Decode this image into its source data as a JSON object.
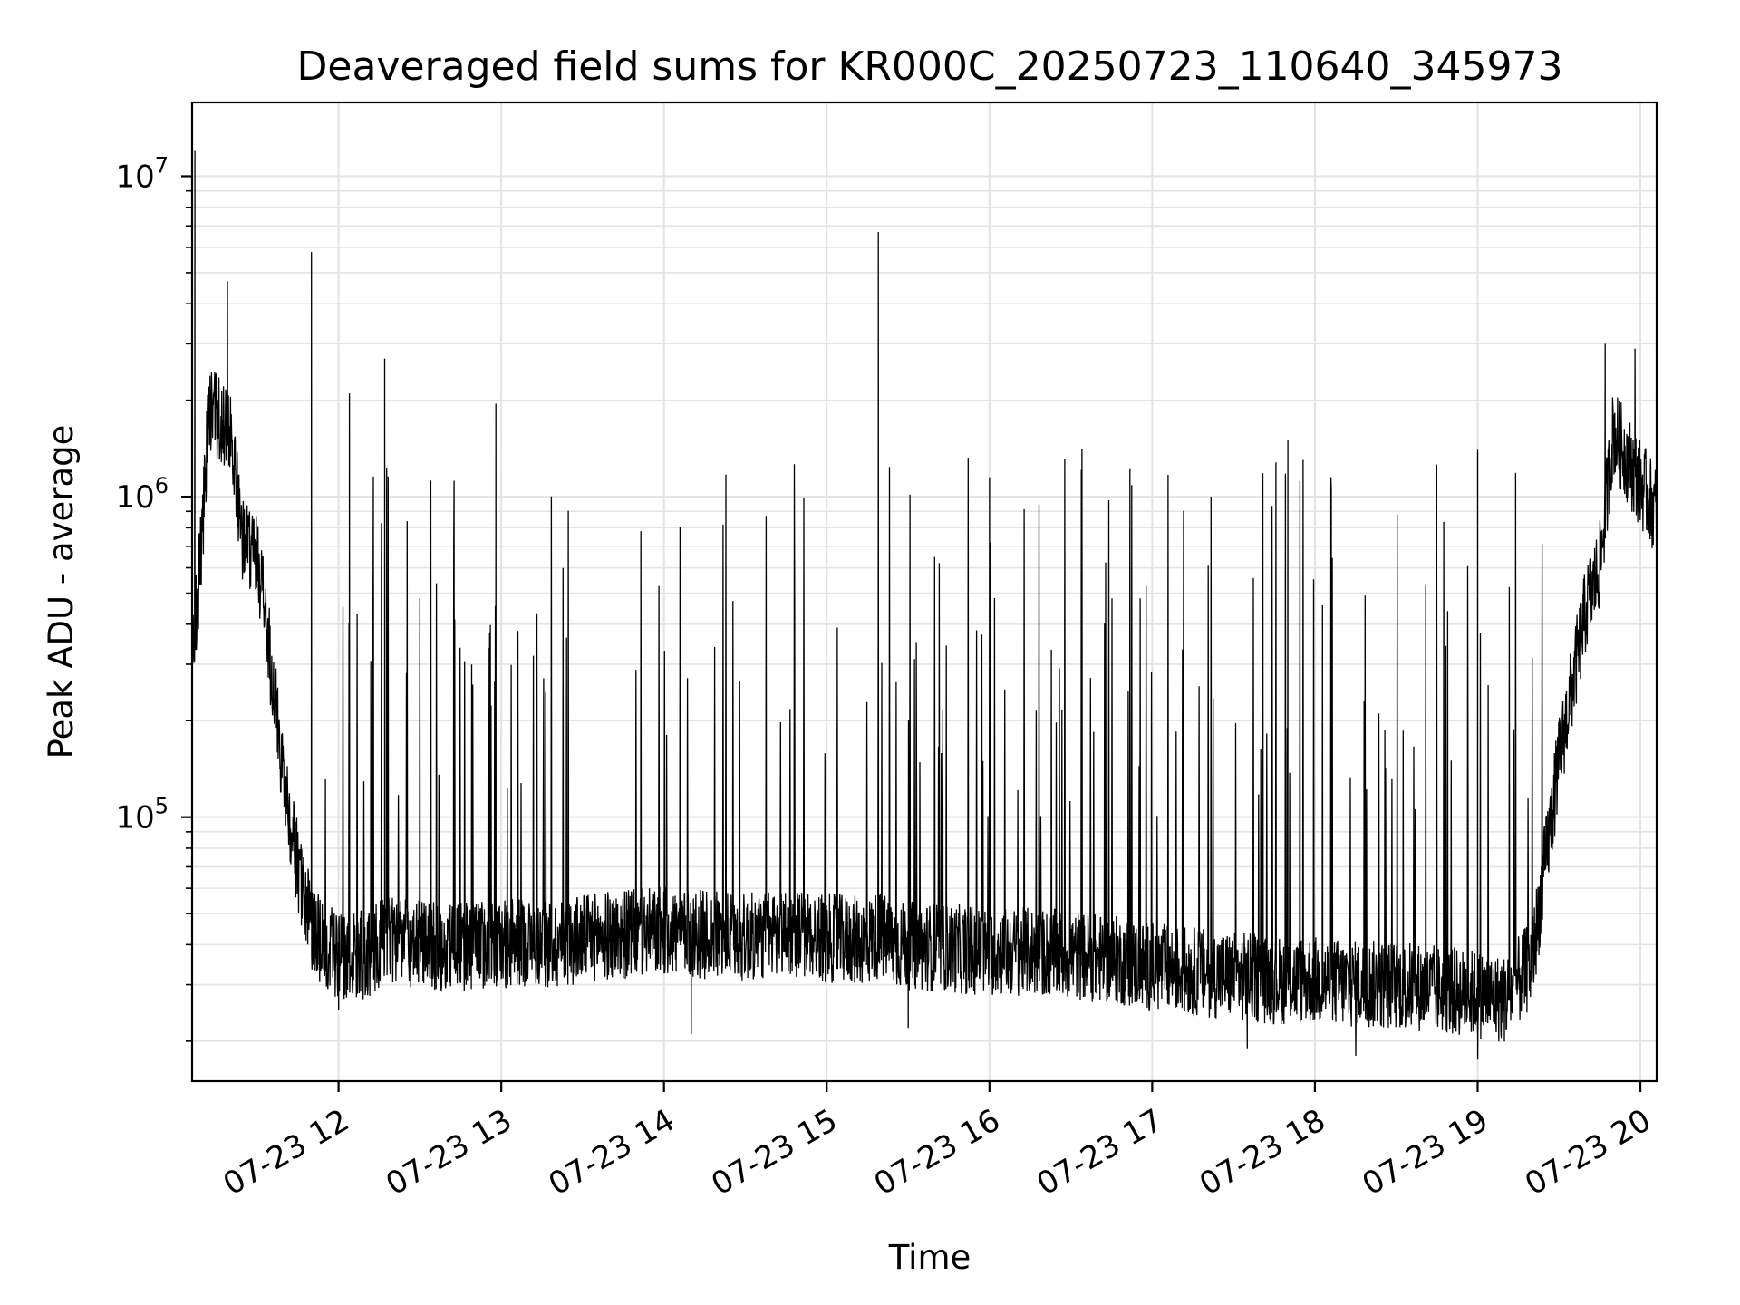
{
  "chart_data": {
    "type": "line",
    "title": "Deaveraged field sums for KR000C_20250723_110640_345973",
    "xlabel": "Time",
    "ylabel": "Peak ADU - average",
    "xscale": "time",
    "yscale": "log",
    "xlim": [
      "2025-07-23 11:06",
      "2025-07-23 20:06"
    ],
    "ylim": [
      15000,
      17000000
    ],
    "x_ticks": [
      "07-23 12",
      "07-23 13",
      "07-23 14",
      "07-23 15",
      "07-23 16",
      "07-23 17",
      "07-23 18",
      "07-23 19",
      "07-23 20"
    ],
    "y_ticks": [
      "10^5",
      "10^6",
      "10^7"
    ],
    "grid": true,
    "line_color": "#000000",
    "series": [
      {
        "x": [
          "11:06",
          "11:10",
          "11:12",
          "11:15",
          "11:20",
          "11:25",
          "11:30",
          "11:32",
          "11:35",
          "11:40",
          "11:45",
          "11:50",
          "11:55",
          "12:00",
          "12:05",
          "12:10",
          "12:15",
          "12:20",
          "12:30",
          "12:40",
          "12:50",
          "13:00",
          "13:10",
          "13:20",
          "13:30",
          "13:45",
          "14:00",
          "14:15",
          "14:30",
          "14:45",
          "15:00",
          "15:15",
          "15:19",
          "15:25",
          "15:45",
          "16:00",
          "16:15",
          "16:30",
          "16:45",
          "17:00",
          "17:15",
          "17:30",
          "17:45",
          "18:00",
          "18:15",
          "18:30",
          "18:45",
          "19:00",
          "19:10",
          "19:20",
          "19:30",
          "19:40",
          "19:45",
          "19:50",
          "20:00",
          "20:06"
        ],
        "y": [
          300000,
          800000,
          1900000,
          1800000,
          1600000,
          700000,
          650000,
          500000,
          300000,
          130000,
          70000,
          45000,
          40000,
          36000,
          38000,
          37000,
          40000,
          42000,
          40000,
          39000,
          40000,
          40000,
          41000,
          40000,
          42000,
          43000,
          44000,
          43000,
          42000,
          44000,
          42000,
          41000,
          43000,
          40000,
          39000,
          38000,
          38000,
          37000,
          36000,
          34000,
          33000,
          32000,
          31000,
          31000,
          30000,
          30000,
          29000,
          28000,
          27000,
          35000,
          150000,
          450000,
          600000,
          1600000,
          1100000,
          900000
        ],
        "spikes": [
          {
            "x": "11:07",
            "y": 12000000
          },
          {
            "x": "11:19",
            "y": 4700000
          },
          {
            "x": "11:50",
            "y": 5800000
          },
          {
            "x": "12:04",
            "y": 2100000
          },
          {
            "x": "12:17",
            "y": 2700000
          },
          {
            "x": "12:58",
            "y": 1950000
          },
          {
            "x": "15:19",
            "y": 6700000
          },
          {
            "x": "16:00",
            "y": 1150000
          },
          {
            "x": "17:50",
            "y": 1500000
          },
          {
            "x": "19:00",
            "y": 1400000
          },
          {
            "x": "19:47",
            "y": 3000000
          },
          {
            "x": "19:58",
            "y": 2900000
          }
        ],
        "dips": [
          {
            "x": "12:00",
            "y": 25000
          },
          {
            "x": "14:10",
            "y": 21000
          },
          {
            "x": "15:30",
            "y": 22000
          },
          {
            "x": "17:35",
            "y": 19000
          },
          {
            "x": "18:15",
            "y": 18000
          },
          {
            "x": "19:00",
            "y": 17500
          }
        ]
      }
    ]
  }
}
